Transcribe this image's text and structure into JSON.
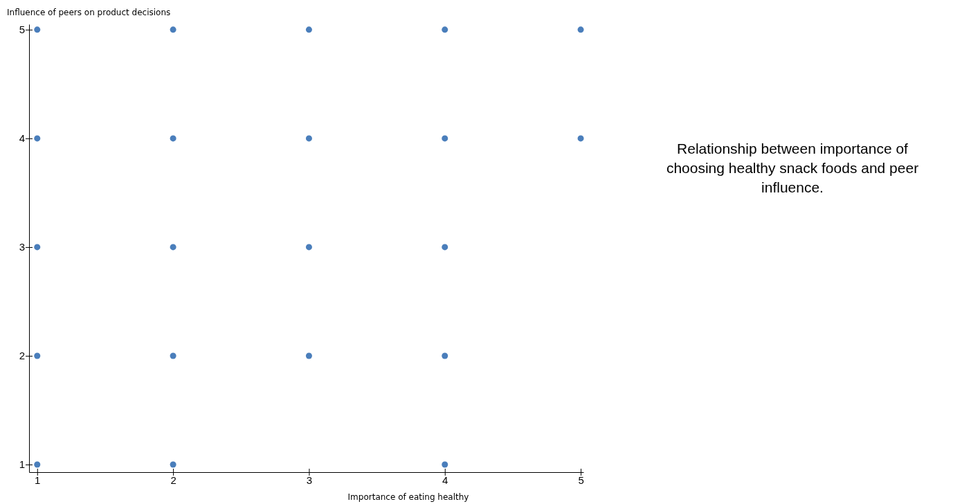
{
  "chart_data": {
    "type": "scatter",
    "title": "Relationship between importance of choosing healthy snack foods and peer influence.",
    "xlabel": "Importance of eating healthy",
    "ylabel": "Influence of peers on product decisions",
    "x": [
      1,
      1,
      1,
      1,
      1,
      2,
      2,
      2,
      2,
      2,
      3,
      3,
      3,
      3,
      4,
      4,
      4,
      4,
      4,
      5,
      5
    ],
    "series": [
      {
        "color": "#4a7ebb",
        "values": [
          5,
          4,
          3,
          2,
          1,
          5,
          4,
          3,
          2,
          1,
          5,
          4,
          3,
          2,
          5,
          4,
          3,
          2,
          1,
          5,
          4
        ]
      }
    ],
    "xlim": [
      0.94,
      5.02
    ],
    "ylim": [
      0.93,
      5.05
    ],
    "xticks": [
      1,
      2,
      3,
      4,
      5
    ],
    "yticks": [
      1,
      2,
      3,
      4,
      5
    ],
    "grid": false,
    "marker": "circle"
  }
}
